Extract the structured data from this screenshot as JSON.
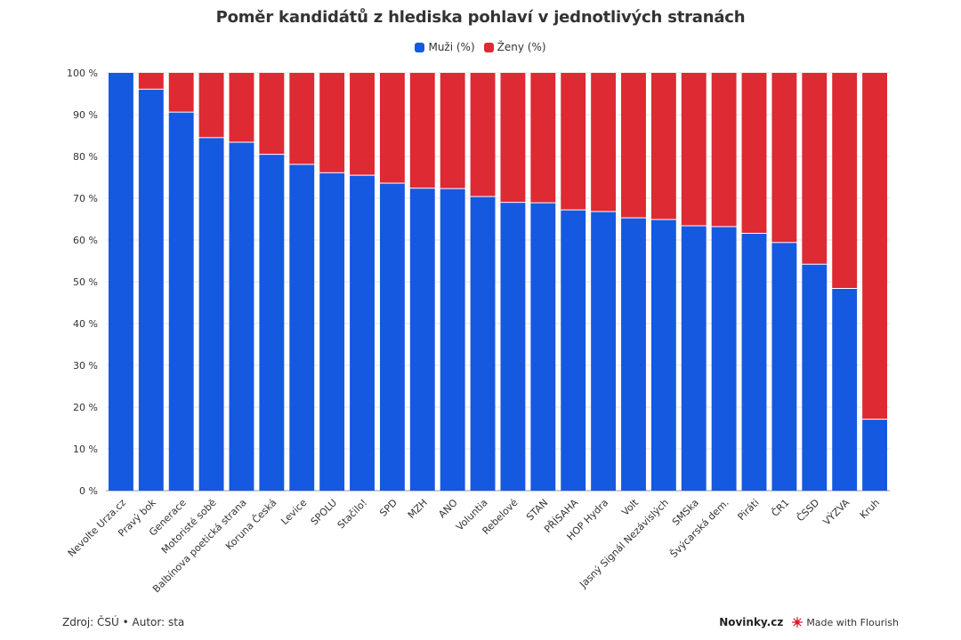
{
  "chart_data": {
    "type": "bar",
    "stacked": true,
    "title": "Poměr kandidátů z hlediska pohlaví v jednotlivých stranách",
    "categories": [
      "Nevolte Urza.cz",
      "Pravý bok",
      "Generace",
      "Motoristé sobě",
      "Balbínova poetická strana",
      "Koruna Česká",
      "Levice",
      "SPOLU",
      "Stačilo!",
      "SPD",
      "MZH",
      "ANO",
      "Voluntia",
      "Rebelové",
      "STAN",
      "PŘÍSAHA",
      "HOP Hydra",
      "Volt",
      "Jasný Signál Nezávislých",
      "SMSka",
      "Švýcarská dem.",
      "Piráti",
      "ČR1",
      "ČSSD",
      "VÝZVA",
      "Kruh"
    ],
    "series": [
      {
        "name": "Muži (%)",
        "color": "#1559e0",
        "values": [
          100,
          96,
          90.5,
          84.4,
          83.3,
          80.4,
          78,
          76,
          75.4,
          73.5,
          72.3,
          72.2,
          70.3,
          68.9,
          68.8,
          67.1,
          66.7,
          65.2,
          64.8,
          63.3,
          63.1,
          61.5,
          59.3,
          54.1,
          48.3,
          17
        ]
      },
      {
        "name": "Ženy (%)",
        "color": "#dd2a33",
        "values": [
          0,
          4,
          9.5,
          15.6,
          16.7,
          19.6,
          22,
          24,
          24.6,
          26.5,
          27.7,
          27.8,
          29.7,
          31.1,
          31.2,
          32.9,
          33.3,
          34.8,
          35.2,
          36.7,
          36.9,
          38.5,
          40.7,
          45.9,
          51.7,
          83
        ]
      }
    ],
    "ylim": [
      0,
      100
    ],
    "yticks": [
      "0 %",
      "10 %",
      "20 %",
      "30 %",
      "40 %",
      "50 %",
      "60 %",
      "70 %",
      "80 %",
      "90 %",
      "100 %"
    ],
    "legend_position": "top-center",
    "grid": true
  },
  "footer": {
    "source": "Zdroj: ČSÚ • Autor: sta",
    "brand": "Novinky.cz",
    "made_with": "Made with Flourish"
  }
}
